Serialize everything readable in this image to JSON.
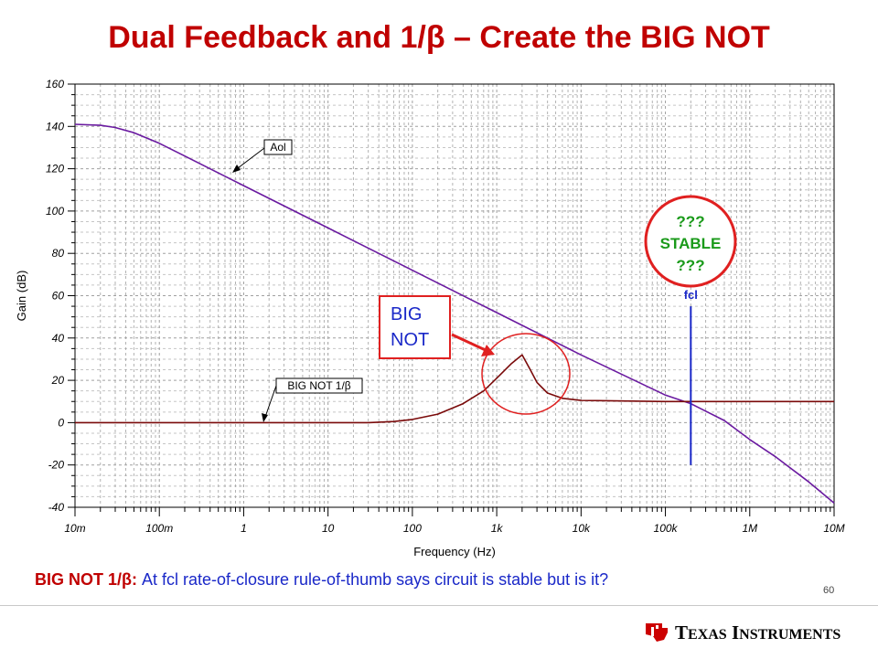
{
  "title": "Dual Feedback and 1/β – Create the BIG NOT",
  "colors": {
    "title": "#c00000",
    "aol": "#6a1aa0",
    "bignot": "#7a0a0a",
    "fcl": "#1a28c8",
    "annotation": "#e02020",
    "stable_text": "#1a9a1a",
    "caption_text": "#1a28c8",
    "grid": "#a0a0a0",
    "ti_red": "#cc0000"
  },
  "chart_data": {
    "type": "line",
    "xlabel": "Frequency (Hz)",
    "ylabel": "Gain (dB)",
    "x_scale": "log",
    "xlim": [
      0.01,
      10000000
    ],
    "ylim": [
      -40,
      160
    ],
    "grid": true,
    "x_ticks": [
      0.01,
      0.1,
      1,
      10,
      100,
      1000,
      10000,
      100000,
      1000000,
      10000000
    ],
    "x_tick_labels": [
      "10m",
      "100m",
      "1",
      "10",
      "100",
      "1k",
      "10k",
      "100k",
      "1M",
      "10M"
    ],
    "y_ticks": [
      -40,
      -20,
      0,
      20,
      40,
      60,
      80,
      100,
      120,
      140,
      160
    ],
    "y_tick_labels": [
      "-40",
      "-20",
      "0",
      "20",
      "40",
      "60",
      "80",
      "100",
      "120",
      "140",
      "160"
    ],
    "series": [
      {
        "name": "Aol",
        "x": [
          0.01,
          0.02,
          0.03,
          0.05,
          0.1,
          0.2,
          0.5,
          1,
          10,
          100,
          1000,
          10000,
          100000,
          200000,
          500000,
          1000000,
          2000000,
          5000000,
          10000000
        ],
        "y": [
          141,
          140.5,
          139.5,
          137,
          132,
          126,
          118,
          112,
          92,
          72,
          52,
          32,
          13,
          9,
          1,
          -8,
          -16,
          -28,
          -38
        ]
      },
      {
        "name": "BIG NOT 1/β",
        "x": [
          0.01,
          1,
          10,
          30,
          60,
          100,
          200,
          400,
          700,
          1000,
          1500,
          2000,
          2500,
          3000,
          4000,
          6000,
          10000,
          100000,
          1000000,
          10000000
        ],
        "y": [
          0,
          0,
          0,
          0,
          0.5,
          1.5,
          4,
          9,
          15,
          21,
          28,
          32,
          25,
          19,
          14,
          11.5,
          10.5,
          10,
          10,
          10
        ]
      }
    ],
    "fcl": {
      "label": "fcl",
      "x": 200000,
      "y_range": [
        -20,
        55
      ]
    },
    "annotations": {
      "aol_label": "Aol",
      "bignot_label": "BIG NOT 1/β",
      "big_not_box": [
        "BIG",
        "NOT"
      ],
      "stable_lines": [
        "???",
        "STABLE",
        "???"
      ]
    }
  },
  "caption": {
    "lead": "BIG NOT 1/β:",
    "text": " At fcl rate-of-closure rule-of-thumb says circuit is stable but is it?"
  },
  "page_number": "60",
  "footer": {
    "brand_big_1": "T",
    "brand_small_1": "EXAS",
    "brand_big_2": "I",
    "brand_small_2": "NSTRUMENTS"
  }
}
